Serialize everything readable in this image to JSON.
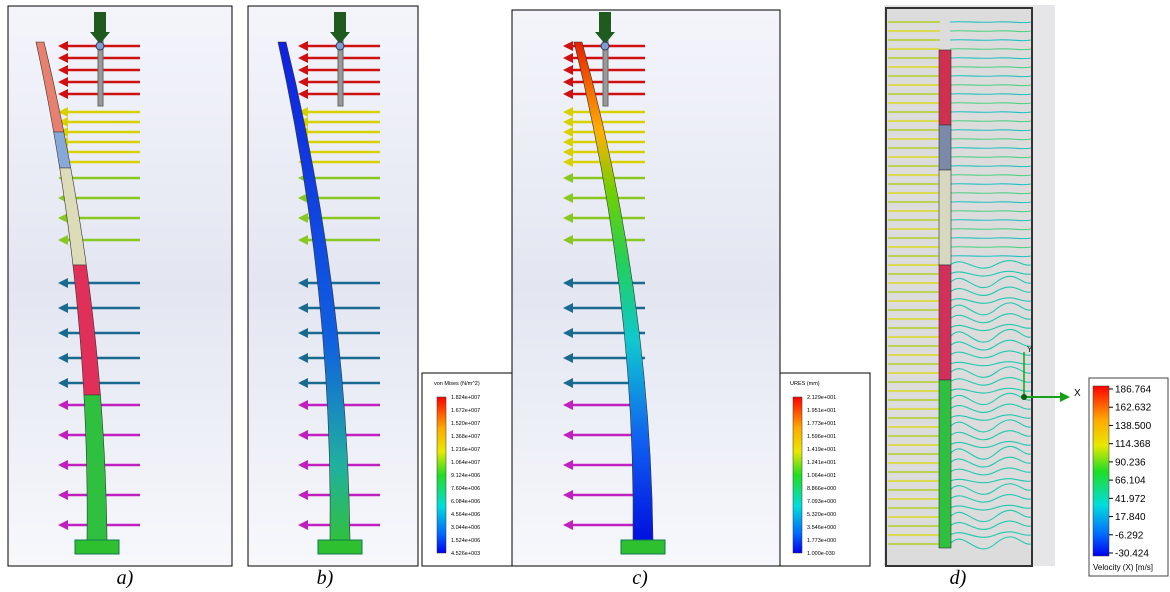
{
  "panels": [
    {
      "label": "a)"
    },
    {
      "label": "b)",
      "legend": {
        "title": "von Mises (N/m^2)",
        "ticks": [
          "1.824e+007",
          "1.672e+007",
          "1.520e+007",
          "1.368e+007",
          "1.216e+007",
          "1.064e+007",
          "9.124e+006",
          "7.604e+006",
          "6.084e+006",
          "4.564e+006",
          "3.044e+006",
          "1.524e+006",
          "4.526e+003"
        ]
      }
    },
    {
      "label": "c)",
      "legend": {
        "title": "URES (mm)",
        "ticks": [
          "2.129e+001",
          "1.951e+001",
          "1.773e+001",
          "1.596e+001",
          "1.419e+001",
          "1.241e+001",
          "1.064e+001",
          "8.866e+000",
          "7.093e+000",
          "5.320e+000",
          "3.546e+000",
          "1.773e+000",
          "1.000e-030"
        ]
      }
    },
    {
      "label": "d)",
      "legend": {
        "title": "Velocity (X) [m/s]",
        "ticks": [
          "186.764",
          "162.632",
          "138.500",
          "114.368",
          "90.236",
          "66.104",
          "41.972",
          "17.840",
          "-6.292",
          "-30.424"
        ]
      },
      "axes": {
        "x": "X",
        "y": "Y"
      }
    }
  ]
}
